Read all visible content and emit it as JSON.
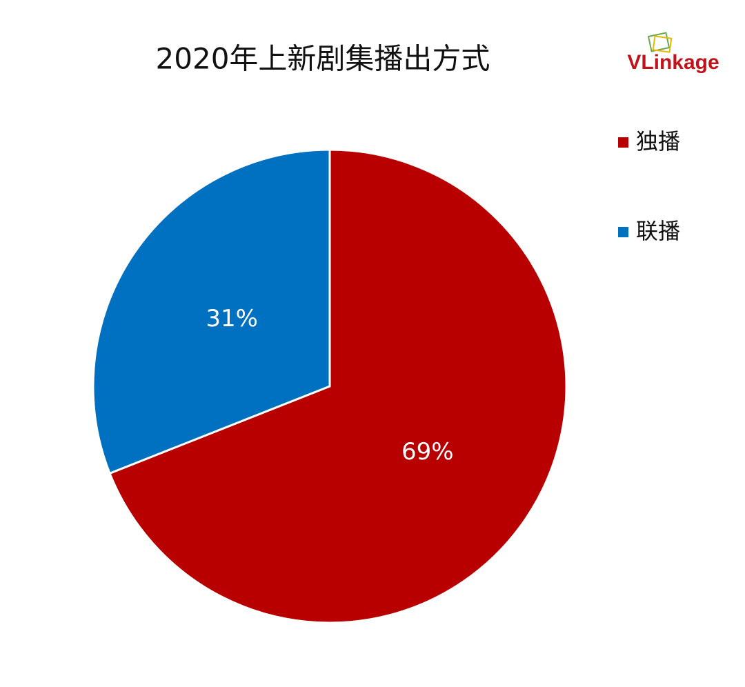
{
  "chart_data": {
    "type": "pie",
    "title": "2020年上新剧集播出方式",
    "logo": "VLinkage",
    "categories": [
      "独播",
      "联播"
    ],
    "values": [
      69,
      31
    ],
    "value_labels": [
      "69%",
      "31%"
    ],
    "colors": [
      "#b80000",
      "#0070c0"
    ],
    "legend": "right"
  }
}
